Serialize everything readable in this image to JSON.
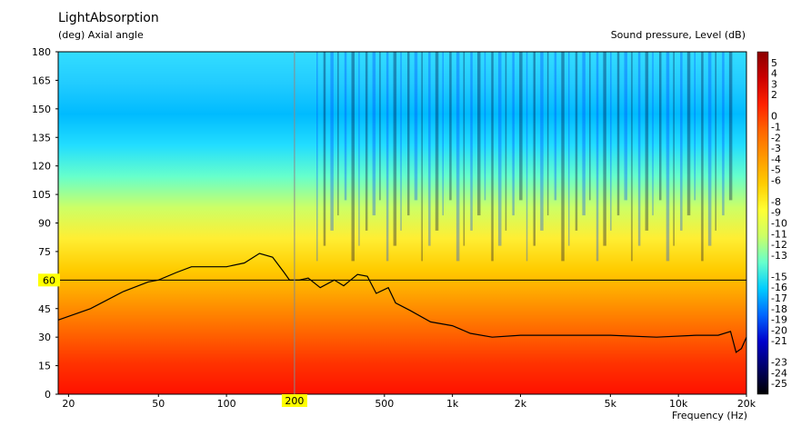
{
  "header": {
    "title": "LightAbsorption",
    "y_axis_label": "(deg)  Axial angle",
    "colorbar_label": "Sound pressure, Level  (dB)",
    "x_axis_label": "Frequency  (Hz)"
  },
  "chart_data": {
    "type": "heatmap",
    "title": "LightAbsorption",
    "xlabel": "Frequency  (Hz)",
    "ylabel": "(deg)  Axial angle",
    "colorbar_label": "Sound pressure, Level  (dB)",
    "x_scale": "log",
    "xlim": [
      18,
      20000
    ],
    "ylim": [
      0,
      180
    ],
    "x_ticks": [
      {
        "value": 20,
        "label": "20"
      },
      {
        "value": 50,
        "label": "50"
      },
      {
        "value": 100,
        "label": "100"
      },
      {
        "value": 200,
        "label": "200"
      },
      {
        "value": 500,
        "label": "500"
      },
      {
        "value": 1000,
        "label": "1k"
      },
      {
        "value": 2000,
        "label": "2k"
      },
      {
        "value": 5000,
        "label": "5k"
      },
      {
        "value": 10000,
        "label": "10k"
      },
      {
        "value": 20000,
        "label": "20k"
      }
    ],
    "y_ticks": [
      0,
      15,
      30,
      45,
      60,
      75,
      90,
      105,
      120,
      135,
      150,
      165,
      180
    ],
    "colorbar_ticks": [
      5,
      4,
      3,
      2,
      0,
      -1,
      -2,
      -3,
      -4,
      -5,
      -6,
      -8,
      -9,
      -10,
      -11,
      -12,
      -13,
      -15,
      -16,
      -17,
      -18,
      -19,
      -20,
      -21,
      -23,
      -24,
      -25
    ],
    "colorbar_range": [
      -26,
      6
    ],
    "colorbar_stops": [
      "#8b0000",
      "#cc0000",
      "#ff2200",
      "#ff6600",
      "#ff9900",
      "#ffcc00",
      "#ffff33",
      "#ccff66",
      "#66ffcc",
      "#00ccff",
      "#0066ff",
      "#0000cc",
      "#000066",
      "#000000"
    ],
    "cursor": {
      "x": 200,
      "y": 60,
      "x_label": "200",
      "y_label": "60"
    },
    "contour_line": {
      "description_level_db": -6,
      "points": [
        [
          18,
          39
        ],
        [
          25,
          45
        ],
        [
          35,
          54
        ],
        [
          45,
          59
        ],
        [
          50,
          60
        ],
        [
          60,
          64
        ],
        [
          70,
          67
        ],
        [
          80,
          67
        ],
        [
          100,
          67
        ],
        [
          120,
          69
        ],
        [
          140,
          74
        ],
        [
          160,
          72
        ],
        [
          180,
          64
        ],
        [
          190,
          60
        ],
        [
          210,
          60
        ],
        [
          230,
          61
        ],
        [
          260,
          56
        ],
        [
          300,
          60
        ],
        [
          330,
          57
        ],
        [
          380,
          63
        ],
        [
          420,
          62
        ],
        [
          460,
          53
        ],
        [
          520,
          56
        ],
        [
          560,
          48
        ],
        [
          650,
          44
        ],
        [
          800,
          38
        ],
        [
          1000,
          36
        ],
        [
          1200,
          32
        ],
        [
          1500,
          30
        ],
        [
          2000,
          31
        ],
        [
          3000,
          31
        ],
        [
          5000,
          31
        ],
        [
          8000,
          30
        ],
        [
          12000,
          31
        ],
        [
          15000,
          31
        ],
        [
          17000,
          33
        ],
        [
          18000,
          22
        ],
        [
          19000,
          24
        ],
        [
          20000,
          30
        ]
      ]
    }
  }
}
